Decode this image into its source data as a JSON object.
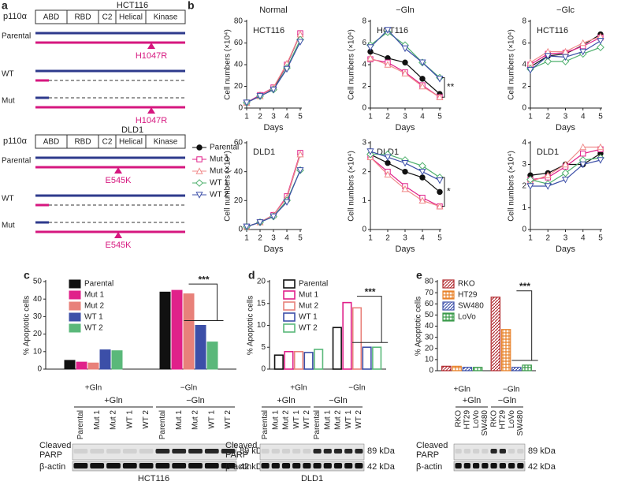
{
  "panel_labels": [
    "a",
    "b",
    "c",
    "d",
    "e"
  ],
  "panel_a": {
    "protein": "p110α",
    "domains": [
      "ABD",
      "RBD",
      "C2",
      "Helical",
      "Kinase"
    ],
    "constructs": [
      {
        "cell_line": "HCT116",
        "rows": [
          "Parental",
          "WT",
          "Mut"
        ],
        "mutation": "H1047R"
      },
      {
        "cell_line": "DLD1",
        "rows": [
          "Parental",
          "WT",
          "Mut"
        ],
        "mutation": "E545K"
      }
    ]
  },
  "chart_data": [
    {
      "type": "line",
      "title": "Normal",
      "label": "HCT116",
      "xlabel": "Days",
      "ylabel": "Cell numbers (×10⁴)",
      "x": [
        1,
        2,
        3,
        4,
        5
      ],
      "xlim": [
        1,
        5
      ],
      "xticks": [
        1,
        2,
        3,
        4,
        5
      ],
      "ylim": [
        0,
        80
      ],
      "yticks": [
        0,
        20,
        40,
        60,
        80
      ],
      "series": [
        {
          "name": "Parental",
          "color": "#111111",
          "marker": "circle",
          "values": [
            5,
            12,
            18,
            40,
            68
          ]
        },
        {
          "name": "Mut 1",
          "color": "#e0218a",
          "marker": "square",
          "values": [
            5,
            12,
            19,
            40,
            69
          ]
        },
        {
          "name": "Mut 2",
          "color": "#f08a8a",
          "marker": "triangle",
          "values": [
            5,
            11,
            19,
            41,
            68
          ]
        },
        {
          "name": "WT 1",
          "color": "#4fb06e",
          "marker": "diamond",
          "values": [
            5,
            11,
            17,
            37,
            63
          ]
        },
        {
          "name": "WT 2",
          "color": "#3c4fa8",
          "marker": "triangle-down",
          "values": [
            5,
            11,
            17,
            36,
            61
          ]
        }
      ]
    },
    {
      "type": "line",
      "title": "−Gln",
      "label": "HCT116",
      "xlabel": "Days",
      "ylabel": "Cell numbers (×10⁴)",
      "annotation": "**",
      "x": [
        1,
        2,
        3,
        4,
        5
      ],
      "xlim": [
        1,
        5
      ],
      "xticks": [
        1,
        2,
        3,
        4,
        5
      ],
      "ylim": [
        0,
        8
      ],
      "yticks": [
        0,
        2,
        4,
        6,
        8
      ],
      "series": [
        {
          "color": "#111111",
          "marker": "circle",
          "values": [
            5.2,
            4.6,
            4.2,
            2.7,
            1.3
          ]
        },
        {
          "color": "#e0218a",
          "marker": "square",
          "values": [
            4.5,
            4.2,
            3.3,
            2.1,
            1.0
          ]
        },
        {
          "color": "#f08a8a",
          "marker": "triangle",
          "values": [
            4.6,
            4.0,
            3.2,
            2.0,
            1.0
          ]
        },
        {
          "color": "#4fb06e",
          "marker": "diamond",
          "values": [
            5.8,
            7.0,
            5.8,
            4.2,
            2.8
          ]
        },
        {
          "color": "#3c4fa8",
          "marker": "triangle-down",
          "values": [
            5.6,
            7.2,
            5.5,
            4.2,
            2.7
          ]
        }
      ]
    },
    {
      "type": "line",
      "title": "−Glc",
      "label": "HCT116",
      "xlabel": "Days",
      "ylabel": "Cell numbers (×10⁴)",
      "x": [
        1,
        2,
        3,
        4,
        5
      ],
      "xlim": [
        1,
        5
      ],
      "xticks": [
        1,
        2,
        3,
        4,
        5
      ],
      "ylim": [
        0,
        8
      ],
      "yticks": [
        0,
        2,
        4,
        6,
        8
      ],
      "series": [
        {
          "color": "#111111",
          "marker": "circle",
          "values": [
            3.8,
            4.8,
            5.0,
            5.8,
            6.8
          ]
        },
        {
          "color": "#e0218a",
          "marker": "square",
          "values": [
            4.0,
            5.0,
            5.1,
            5.7,
            6.5
          ]
        },
        {
          "color": "#f08a8a",
          "marker": "triangle",
          "values": [
            4.2,
            5.2,
            5.2,
            6.0,
            6.6
          ]
        },
        {
          "color": "#4fb06e",
          "marker": "diamond",
          "values": [
            3.6,
            4.3,
            4.3,
            5.0,
            5.6
          ]
        },
        {
          "color": "#3c4fa8",
          "marker": "triangle-down",
          "values": [
            3.5,
            4.8,
            4.7,
            5.2,
            6.2
          ]
        }
      ]
    },
    {
      "type": "line",
      "label": "DLD1",
      "xlabel": "Days",
      "ylabel": "Cell numbers (×10⁴)",
      "x": [
        1,
        2,
        3,
        4,
        5
      ],
      "xlim": [
        1,
        5
      ],
      "xticks": [
        1,
        2,
        3,
        4,
        5
      ],
      "ylim": [
        0,
        60
      ],
      "yticks": [
        0,
        20,
        40,
        60
      ],
      "series": [
        {
          "color": "#111111",
          "marker": "circle",
          "values": [
            2,
            5,
            10,
            22,
            52
          ]
        },
        {
          "color": "#e0218a",
          "marker": "square",
          "values": [
            2,
            5,
            10,
            23,
            53
          ]
        },
        {
          "color": "#f08a8a",
          "marker": "triangle",
          "values": [
            2,
            5,
            10,
            22,
            52
          ]
        },
        {
          "color": "#4fb06e",
          "marker": "diamond",
          "values": [
            2,
            5,
            9,
            20,
            41
          ]
        },
        {
          "color": "#3c4fa8",
          "marker": "triangle-down",
          "values": [
            2,
            5,
            9,
            19,
            41
          ]
        }
      ]
    },
    {
      "type": "line",
      "label": "DLD1",
      "xlabel": "Days",
      "ylabel": "Cell numbers (×10⁴)",
      "annotation": "*",
      "x": [
        1,
        2,
        3,
        4,
        5
      ],
      "xlim": [
        1,
        5
      ],
      "xticks": [
        1,
        2,
        3,
        4,
        5
      ],
      "ylim": [
        0,
        3
      ],
      "yticks": [
        0,
        1,
        2,
        3
      ],
      "series": [
        {
          "color": "#111111",
          "marker": "circle",
          "values": [
            2.6,
            2.3,
            2.0,
            1.8,
            1.3
          ]
        },
        {
          "color": "#e0218a",
          "marker": "square",
          "values": [
            2.5,
            2.0,
            1.5,
            1.1,
            0.8
          ]
        },
        {
          "color": "#f08a8a",
          "marker": "triangle",
          "values": [
            2.5,
            1.9,
            1.4,
            1.0,
            0.8
          ]
        },
        {
          "color": "#4fb06e",
          "marker": "diamond",
          "values": [
            2.6,
            2.6,
            2.4,
            2.2,
            1.8
          ]
        },
        {
          "color": "#3c4fa8",
          "marker": "triangle-down",
          "values": [
            2.7,
            2.5,
            2.3,
            2.0,
            1.7
          ]
        }
      ]
    },
    {
      "type": "line",
      "label": "DLD1",
      "xlabel": "Days",
      "ylabel": "Cell numbers (×10⁴)",
      "x": [
        1,
        2,
        3,
        4,
        5
      ],
      "xlim": [
        1,
        5
      ],
      "xticks": [
        1,
        2,
        3,
        4,
        5
      ],
      "ylim": [
        0,
        4
      ],
      "yticks": [
        0,
        1,
        2,
        3,
        4
      ],
      "series": [
        {
          "color": "#111111",
          "marker": "circle",
          "values": [
            2.5,
            2.6,
            3.0,
            3.0,
            3.5
          ]
        },
        {
          "color": "#e0218a",
          "marker": "square",
          "values": [
            2.3,
            2.4,
            2.9,
            3.5,
            3.7
          ]
        },
        {
          "color": "#f08a8a",
          "marker": "triangle",
          "values": [
            2.2,
            2.5,
            3.0,
            3.8,
            3.8
          ]
        },
        {
          "color": "#4fb06e",
          "marker": "diamond",
          "values": [
            2.3,
            2.1,
            2.6,
            3.2,
            3.3
          ]
        },
        {
          "color": "#3c4fa8",
          "marker": "triangle-down",
          "values": [
            2.0,
            2.0,
            2.3,
            3.0,
            3.2
          ]
        }
      ]
    },
    {
      "type": "bar",
      "style": "solid",
      "ylabel": "% Apoptotic cells",
      "annotation": "***",
      "categories": [
        "+Gln",
        "−Gln"
      ],
      "ylim": [
        0,
        50
      ],
      "yticks": [
        0,
        10,
        20,
        30,
        40,
        50
      ],
      "series": [
        {
          "name": "Parental",
          "color": "#111111",
          "values": [
            5,
            44
          ]
        },
        {
          "name": "Mut 1",
          "color": "#e0218a",
          "values": [
            4,
            45
          ]
        },
        {
          "name": "Mut 2",
          "color": "#e8817a",
          "values": [
            3.5,
            43
          ]
        },
        {
          "name": "WT 1",
          "color": "#3c4fa8",
          "values": [
            11,
            25
          ]
        },
        {
          "name": "WT 2",
          "color": "#5ab87a",
          "values": [
            10.5,
            15.5
          ]
        }
      ]
    },
    {
      "type": "bar",
      "style": "outline",
      "ylabel": "% Apoptotic cells",
      "annotation": "***",
      "categories": [
        "+Gln",
        "−Gln"
      ],
      "ylim": [
        0,
        20
      ],
      "yticks": [
        0,
        5,
        10,
        15,
        20
      ],
      "series": [
        {
          "name": "Parental",
          "color": "#111111",
          "values": [
            3.2,
            9.5
          ]
        },
        {
          "name": "Mut 1",
          "color": "#e0218a",
          "values": [
            4,
            15.2
          ]
        },
        {
          "name": "Mut 2",
          "color": "#e8817a",
          "values": [
            4,
            14
          ]
        },
        {
          "name": "WT 1",
          "color": "#3c4fa8",
          "values": [
            3.8,
            5
          ]
        },
        {
          "name": "WT 2",
          "color": "#5ab87a",
          "values": [
            4.5,
            5
          ]
        }
      ]
    },
    {
      "type": "bar",
      "style": "pattern",
      "ylabel": "% Apoptotic cells",
      "annotation": "***",
      "categories": [
        "+Gln",
        "−Gln"
      ],
      "ylim": [
        0,
        80
      ],
      "yticks": [
        0,
        10,
        20,
        30,
        40,
        50,
        60,
        70,
        80
      ],
      "series": [
        {
          "name": "RKO",
          "color": "#b0282e",
          "values": [
            4,
            66
          ]
        },
        {
          "name": "HT29",
          "color": "#e8822a",
          "values": [
            4,
            37
          ]
        },
        {
          "name": "SW480",
          "color": "#3c4fa8",
          "values": [
            3,
            3
          ]
        },
        {
          "name": "LoVo",
          "color": "#3a9a4a",
          "values": [
            3,
            5
          ]
        }
      ]
    }
  ],
  "blots": [
    {
      "groups": [
        "+Gln",
        "−Gln"
      ],
      "lanes": [
        "Parental",
        "Mut 1",
        "Mut 2",
        "WT 1",
        "WT 2",
        "Parental",
        "Mut 1",
        "Mut 2",
        "WT 1",
        "WT 2"
      ],
      "cleaved_label": [
        "Cleaved",
        "PARP"
      ],
      "loading_label": "β-actin",
      "sizes": [
        "89 kDa",
        "42 kDa"
      ],
      "cell_line": "HCT116"
    },
    {
      "groups": [
        "+Gln",
        "−Gln"
      ],
      "lanes": [
        "Parental",
        "Mut 1",
        "Mut 2",
        "WT 1",
        "WT 2",
        "Parental",
        "Mut 1",
        "Mut 2",
        "WT 1",
        "WT 2"
      ],
      "cleaved_label": [
        "Cleaved",
        "PARP"
      ],
      "loading_label": "β-actin",
      "sizes": [
        "89 kDa",
        "42 kDa"
      ],
      "cell_line": "DLD1"
    },
    {
      "groups": [
        "+Gln",
        "−Gln"
      ],
      "lanes": [
        "RKO",
        "HT29",
        "LoVo",
        "SW480",
        "RKO",
        "HT29",
        "LoVo",
        "SW480"
      ],
      "cleaved_label": [
        "Cleaved",
        "PARP"
      ],
      "loading_label": "β-actin",
      "sizes": [
        "89 kDa",
        "42 kDa"
      ]
    }
  ]
}
